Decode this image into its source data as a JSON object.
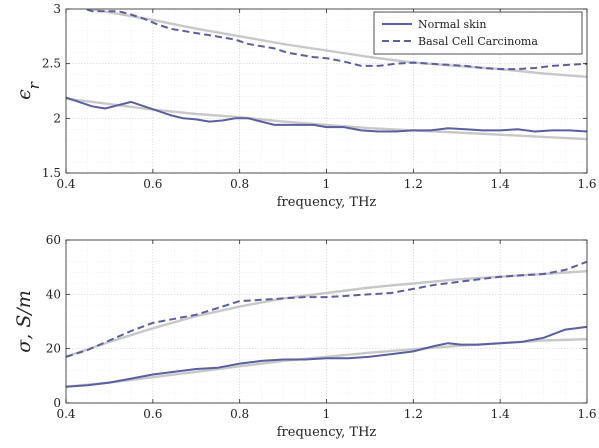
{
  "chart_data": [
    {
      "type": "line",
      "ylabel_symbol": "ϵ",
      "ylabel_subscript": "r",
      "xlabel": "frequency, THz",
      "xlim": [
        0.4,
        1.6
      ],
      "ylim": [
        1.5,
        3.0
      ],
      "xticks": [
        "0.4",
        "0.6",
        "0.8",
        "1",
        "1.2",
        "1.4",
        "1.6"
      ],
      "xtick_values": [
        0.4,
        0.6,
        0.8,
        1.0,
        1.2,
        1.4,
        1.6
      ],
      "yticks": [
        "1.5",
        "2",
        "2.5",
        "3"
      ],
      "ytick_values": [
        1.5,
        2.0,
        2.5,
        3.0
      ],
      "grid": true,
      "minor_grid": true,
      "legend_position": "top-right",
      "series": [
        {
          "name": "Normal skin",
          "style": "solid",
          "color": "#5a5fa0",
          "x": [
            0.4,
            0.43,
            0.46,
            0.49,
            0.52,
            0.55,
            0.58,
            0.61,
            0.64,
            0.67,
            0.7,
            0.73,
            0.76,
            0.79,
            0.82,
            0.85,
            0.88,
            0.91,
            0.94,
            0.97,
            1.0,
            1.04,
            1.08,
            1.12,
            1.16,
            1.2,
            1.24,
            1.28,
            1.32,
            1.36,
            1.4,
            1.44,
            1.48,
            1.52,
            1.56,
            1.6
          ],
          "y": [
            2.19,
            2.15,
            2.11,
            2.09,
            2.12,
            2.15,
            2.11,
            2.07,
            2.03,
            2.0,
            1.99,
            1.97,
            1.98,
            2.0,
            2.0,
            1.97,
            1.94,
            1.94,
            1.94,
            1.94,
            1.92,
            1.92,
            1.89,
            1.88,
            1.88,
            1.89,
            1.89,
            1.91,
            1.9,
            1.89,
            1.89,
            1.9,
            1.88,
            1.89,
            1.89,
            1.88
          ]
        },
        {
          "name": "Basal Cell Carcinoma",
          "style": "dashed",
          "color": "#5a5fa0",
          "x": [
            0.4,
            0.43,
            0.46,
            0.49,
            0.52,
            0.55,
            0.58,
            0.61,
            0.64,
            0.67,
            0.7,
            0.73,
            0.76,
            0.79,
            0.82,
            0.85,
            0.88,
            0.91,
            0.94,
            0.97,
            1.0,
            1.04,
            1.08,
            1.12,
            1.16,
            1.2,
            1.24,
            1.28,
            1.32,
            1.36,
            1.4,
            1.44,
            1.48,
            1.52,
            1.56,
            1.6
          ],
          "y": [
            3.06,
            3.02,
            2.98,
            2.98,
            2.98,
            2.95,
            2.91,
            2.86,
            2.82,
            2.8,
            2.78,
            2.76,
            2.74,
            2.72,
            2.68,
            2.66,
            2.64,
            2.6,
            2.58,
            2.56,
            2.55,
            2.52,
            2.48,
            2.48,
            2.5,
            2.51,
            2.5,
            2.49,
            2.48,
            2.46,
            2.45,
            2.45,
            2.46,
            2.48,
            2.49,
            2.5
          ]
        },
        {
          "name": "",
          "style": "fit",
          "color": "#c8c8c8",
          "x": [
            0.4,
            0.5,
            0.6,
            0.7,
            0.8,
            0.9,
            1.0,
            1.1,
            1.2,
            1.3,
            1.4,
            1.5,
            1.6
          ],
          "y": [
            2.18,
            2.13,
            2.08,
            2.04,
            2.01,
            1.97,
            1.94,
            1.91,
            1.89,
            1.87,
            1.85,
            1.83,
            1.81
          ]
        },
        {
          "name": "",
          "style": "fit",
          "color": "#c8c8c8",
          "x": [
            0.4,
            0.5,
            0.6,
            0.7,
            0.8,
            0.9,
            1.0,
            1.1,
            1.2,
            1.3,
            1.4,
            1.5,
            1.6
          ],
          "y": [
            3.04,
            2.97,
            2.9,
            2.82,
            2.75,
            2.68,
            2.62,
            2.56,
            2.51,
            2.48,
            2.45,
            2.41,
            2.38
          ]
        }
      ]
    },
    {
      "type": "line",
      "ylabel_symbol": "σ, S/m",
      "xlabel": "frequency, THz",
      "xlim": [
        0.4,
        1.6
      ],
      "ylim": [
        0,
        60
      ],
      "xticks": [
        "0.4",
        "0.6",
        "0.8",
        "1",
        "1.2",
        "1.4",
        "1.6"
      ],
      "xtick_values": [
        0.4,
        0.6,
        0.8,
        1.0,
        1.2,
        1.4,
        1.6
      ],
      "yticks": [
        "0",
        "20",
        "40",
        "60"
      ],
      "ytick_values": [
        0,
        20,
        40,
        60
      ],
      "grid": true,
      "minor_grid": true,
      "series": [
        {
          "name": "Normal skin",
          "style": "solid",
          "color": "#5a5fa0",
          "x": [
            0.4,
            0.45,
            0.5,
            0.55,
            0.6,
            0.65,
            0.7,
            0.75,
            0.8,
            0.85,
            0.9,
            0.95,
            1.0,
            1.05,
            1.1,
            1.15,
            1.2,
            1.25,
            1.28,
            1.31,
            1.35,
            1.4,
            1.45,
            1.5,
            1.55,
            1.6
          ],
          "y": [
            6.0,
            6.5,
            7.5,
            9.0,
            10.5,
            11.5,
            12.5,
            13.0,
            14.5,
            15.5,
            16.0,
            16.0,
            16.5,
            16.5,
            17.0,
            18.0,
            19.0,
            21.0,
            22.0,
            21.5,
            21.5,
            22.0,
            22.5,
            24.0,
            27.0,
            28.0
          ]
        },
        {
          "name": "Basal Cell Carcinoma",
          "style": "dashed",
          "color": "#5a5fa0",
          "x": [
            0.4,
            0.45,
            0.5,
            0.55,
            0.6,
            0.65,
            0.7,
            0.75,
            0.8,
            0.85,
            0.9,
            0.95,
            1.0,
            1.05,
            1.1,
            1.15,
            1.2,
            1.25,
            1.3,
            1.35,
            1.4,
            1.45,
            1.5,
            1.55,
            1.6
          ],
          "y": [
            17.0,
            19.5,
            23.0,
            26.5,
            29.5,
            31.0,
            32.5,
            35.0,
            37.5,
            38.0,
            38.5,
            39.0,
            39.0,
            39.5,
            40.0,
            40.5,
            42.0,
            43.5,
            44.5,
            45.5,
            46.5,
            47.0,
            47.5,
            49.0,
            52.0
          ]
        },
        {
          "name": "",
          "style": "fit",
          "color": "#c8c8c8",
          "x": [
            0.4,
            0.5,
            0.6,
            0.7,
            0.8,
            0.9,
            1.0,
            1.1,
            1.2,
            1.3,
            1.4,
            1.5,
            1.6
          ],
          "y": [
            6.0,
            7.5,
            9.5,
            11.5,
            13.5,
            15.5,
            17.0,
            18.5,
            19.8,
            21.0,
            22.0,
            23.0,
            23.5
          ]
        },
        {
          "name": "",
          "style": "fit",
          "color": "#c8c8c8",
          "x": [
            0.4,
            0.5,
            0.6,
            0.7,
            0.8,
            0.9,
            1.0,
            1.1,
            1.2,
            1.3,
            1.4,
            1.5,
            1.6
          ],
          "y": [
            17.0,
            22.5,
            27.5,
            32.0,
            35.5,
            38.5,
            40.5,
            42.5,
            44.0,
            45.5,
            46.5,
            47.5,
            48.5
          ]
        }
      ]
    }
  ]
}
